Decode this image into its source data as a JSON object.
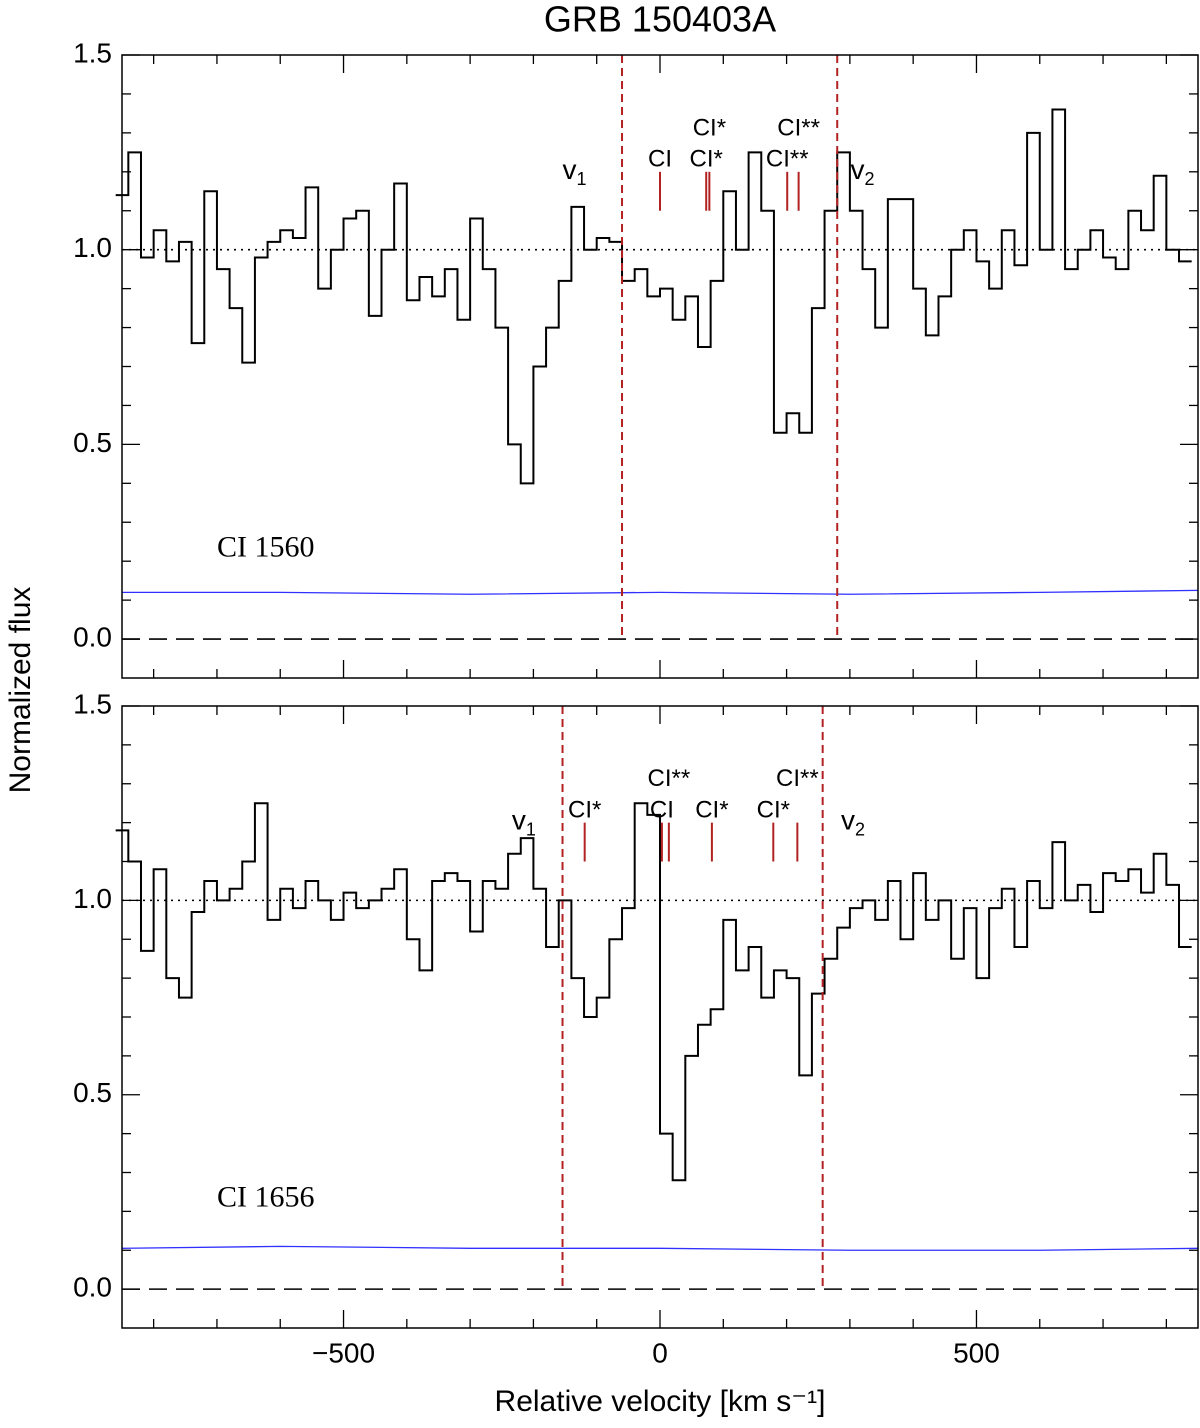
{
  "title": "GRB 150403A",
  "ylabel": "Normalized flux",
  "xlabel": "Relative velocity  [km s⁻¹]",
  "chart_data": [
    {
      "type": "line",
      "label": "CI 1560",
      "label_at": [
        -700,
        0.23
      ],
      "xlim": [
        -850,
        850
      ],
      "ylim": [
        -0.1,
        1.5
      ],
      "xticks": [
        {
          "value": -500,
          "label": "−500"
        },
        {
          "value": 0,
          "label": "0"
        },
        {
          "value": 500,
          "label": "500"
        }
      ],
      "xminorticks": [
        -800,
        -700,
        -600,
        -400,
        -300,
        -200,
        -100,
        100,
        200,
        300,
        400,
        600,
        700,
        800
      ],
      "yticks": [
        {
          "value": 0,
          "label": "0.0"
        },
        {
          "value": 0.5,
          "label": "0.5"
        },
        {
          "value": 1,
          "label": "1.0"
        },
        {
          "value": 1.5,
          "label": "1.5"
        }
      ],
      "yminorticks": [
        0.1,
        0.2,
        0.3,
        0.4,
        0.6,
        0.7,
        0.8,
        0.9,
        1.1,
        1.2,
        1.3,
        1.4
      ],
      "show_xtick_labels": false,
      "reference_lines": [
        {
          "value": 1,
          "style": "dotted"
        },
        {
          "value": 0,
          "style": "dashed"
        }
      ],
      "velocity_limits": [
        {
          "text": "v",
          "sub": "1",
          "value": -60,
          "label_x": -135,
          "label_y": 1.2
        },
        {
          "text": "v",
          "sub": "2",
          "value": 280,
          "label_x": 320,
          "label_y": 1.2
        }
      ],
      "velocity_limit_color": "#b22222",
      "transitions": [
        {
          "label": "CI",
          "value": 0,
          "label_y": 1.23
        },
        {
          "label": "CI*",
          "value": 73,
          "label_y": 1.23
        },
        {
          "label": "CI*",
          "value": 78,
          "label_y": 1.31
        },
        {
          "label": "CI**",
          "value": 201,
          "label_y": 1.23
        },
        {
          "label": "CI**",
          "value": 219,
          "label_y": 1.31
        }
      ],
      "transition_color": "#b22222",
      "series": [
        {
          "style": "steps",
          "color": "#000000",
          "x": [
            -850,
            -830,
            -810,
            -790,
            -770,
            -750,
            -730,
            -710,
            -690,
            -670,
            -650,
            -630,
            -610,
            -590,
            -570,
            -550,
            -530,
            -510,
            -490,
            -470,
            -450,
            -430,
            -410,
            -390,
            -370,
            -350,
            -330,
            -310,
            -290,
            -270,
            -250,
            -230,
            -210,
            -190,
            -170,
            -150,
            -130,
            -110,
            -90,
            -70,
            -50,
            -30,
            -10,
            10,
            30,
            50,
            70,
            90,
            110,
            130,
            150,
            170,
            190,
            210,
            230,
            250,
            270,
            290,
            310,
            330,
            350,
            370,
            390,
            410,
            430,
            450,
            470,
            490,
            510,
            530,
            550,
            570,
            590,
            610,
            630,
            650,
            670,
            690,
            710,
            730,
            750,
            770,
            790,
            810,
            830
          ],
          "values": [
            1.14,
            1.25,
            0.98,
            1.05,
            0.97,
            1.02,
            0.76,
            1.15,
            0.95,
            0.85,
            0.71,
            0.98,
            1.02,
            1.05,
            1.03,
            1.16,
            0.9,
            1.0,
            1.08,
            1.1,
            0.83,
            1.0,
            1.17,
            0.87,
            0.93,
            0.88,
            0.95,
            0.82,
            1.08,
            0.95,
            0.8,
            0.5,
            0.4,
            0.7,
            0.8,
            0.92,
            1.11,
            1.0,
            1.03,
            1.02,
            0.92,
            0.95,
            0.88,
            0.9,
            0.82,
            0.88,
            0.75,
            0.92,
            1.15,
            1.0,
            1.25,
            1.1,
            0.53,
            0.58,
            0.53,
            0.85,
            1.1,
            1.25,
            1.1,
            0.95,
            0.8,
            1.13,
            1.13,
            0.9,
            0.78,
            0.88,
            1.0,
            1.05,
            0.97,
            0.9,
            1.05,
            0.96,
            1.3,
            1.0,
            1.36,
            0.95,
            1.0,
            1.05,
            0.98,
            0.95,
            1.1,
            1.05,
            1.19,
            1.0,
            0.97
          ]
        },
        {
          "style": "line",
          "color": "#3030ff",
          "x": [
            -850,
            -600,
            -300,
            0,
            300,
            600,
            850
          ],
          "values": [
            0.12,
            0.12,
            0.115,
            0.12,
            0.115,
            0.12,
            0.125
          ]
        }
      ]
    },
    {
      "type": "line",
      "label": "CI 1656",
      "label_at": [
        -700,
        0.23
      ],
      "xlim": [
        -850,
        850
      ],
      "ylim": [
        -0.1,
        1.5
      ],
      "xticks": [
        {
          "value": -500,
          "label": "−500"
        },
        {
          "value": 0,
          "label": "0"
        },
        {
          "value": 500,
          "label": "500"
        }
      ],
      "xminorticks": [
        -800,
        -700,
        -600,
        -400,
        -300,
        -200,
        -100,
        100,
        200,
        300,
        400,
        600,
        700,
        800
      ],
      "yticks": [
        {
          "value": 0,
          "label": "0.0"
        },
        {
          "value": 0.5,
          "label": "0.5"
        },
        {
          "value": 1,
          "label": "1.0"
        },
        {
          "value": 1.5,
          "label": "1.5"
        }
      ],
      "yminorticks": [
        0.1,
        0.2,
        0.3,
        0.4,
        0.6,
        0.7,
        0.8,
        0.9,
        1.1,
        1.2,
        1.3,
        1.4
      ],
      "show_xtick_labels": true,
      "reference_lines": [
        {
          "value": 1,
          "style": "dotted"
        },
        {
          "value": 0,
          "style": "dashed"
        }
      ],
      "velocity_limits": [
        {
          "text": "v",
          "sub": "1",
          "value": -154,
          "label_x": -215,
          "label_y": 1.2
        },
        {
          "text": "v",
          "sub": "2",
          "value": 257,
          "label_x": 305,
          "label_y": 1.2
        }
      ],
      "velocity_limit_color": "#b22222",
      "transitions": [
        {
          "label": "CI*",
          "value": -119,
          "label_y": 1.23
        },
        {
          "label": "CI",
          "value": 3,
          "label_y": 1.23
        },
        {
          "label": "CI**",
          "value": 14,
          "label_y": 1.31
        },
        {
          "label": "CI*",
          "value": 82,
          "label_y": 1.23
        },
        {
          "label": "CI*",
          "value": 179,
          "label_y": 1.23
        },
        {
          "label": "CI**",
          "value": 217,
          "label_y": 1.31
        }
      ],
      "transition_color": "#b22222",
      "series": [
        {
          "style": "steps",
          "color": "#000000",
          "x": [
            -850,
            -830,
            -810,
            -790,
            -770,
            -750,
            -730,
            -710,
            -690,
            -670,
            -650,
            -630,
            -610,
            -590,
            -570,
            -550,
            -530,
            -510,
            -490,
            -470,
            -450,
            -430,
            -410,
            -390,
            -370,
            -350,
            -330,
            -310,
            -290,
            -270,
            -250,
            -230,
            -210,
            -190,
            -170,
            -150,
            -130,
            -110,
            -90,
            -70,
            -50,
            -30,
            -10,
            10,
            30,
            50,
            70,
            90,
            110,
            130,
            150,
            170,
            190,
            210,
            230,
            250,
            270,
            290,
            310,
            330,
            350,
            370,
            390,
            410,
            430,
            450,
            470,
            490,
            510,
            530,
            550,
            570,
            590,
            610,
            630,
            650,
            670,
            690,
            710,
            730,
            750,
            770,
            790,
            810,
            830
          ],
          "values": [
            1.18,
            1.1,
            0.87,
            1.08,
            0.8,
            0.75,
            0.97,
            1.05,
            1.0,
            1.03,
            1.1,
            1.25,
            0.95,
            1.03,
            0.98,
            1.05,
            1.0,
            0.95,
            1.02,
            0.98,
            1.0,
            1.03,
            1.08,
            0.9,
            0.82,
            1.05,
            1.07,
            1.05,
            0.92,
            1.05,
            1.03,
            1.12,
            1.16,
            1.03,
            0.88,
            1.0,
            0.8,
            0.7,
            0.75,
            0.9,
            0.98,
            1.25,
            1.22,
            0.4,
            0.28,
            0.6,
            0.68,
            0.72,
            0.95,
            0.82,
            0.88,
            0.75,
            0.82,
            0.8,
            0.55,
            0.76,
            0.85,
            0.93,
            0.98,
            1.0,
            0.95,
            1.05,
            0.9,
            1.07,
            0.95,
            1.0,
            0.85,
            0.98,
            0.8,
            0.98,
            1.03,
            0.88,
            1.05,
            0.98,
            1.15,
            1.0,
            1.04,
            0.97,
            1.07,
            1.05,
            1.08,
            1.02,
            1.12,
            1.04,
            0.88
          ]
        },
        {
          "style": "line",
          "color": "#3030ff",
          "x": [
            -850,
            -600,
            -300,
            0,
            300,
            600,
            850
          ],
          "values": [
            0.105,
            0.11,
            0.105,
            0.105,
            0.1,
            0.1,
            0.105
          ]
        }
      ]
    }
  ]
}
